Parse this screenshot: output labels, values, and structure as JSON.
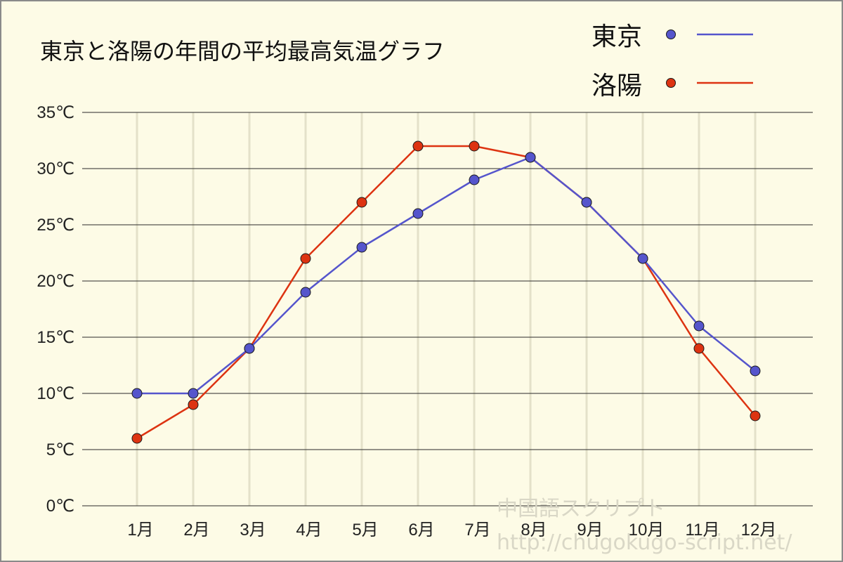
{
  "chart_data": {
    "type": "line",
    "title": "東京と洛陽の年間の平均最高気温グラフ",
    "categories": [
      "1月",
      "2月",
      "3月",
      "4月",
      "5月",
      "6月",
      "7月",
      "8月",
      "9月",
      "10月",
      "11月",
      "12月"
    ],
    "series": [
      {
        "name": "東京",
        "color": "#5555cc",
        "values": [
          10,
          10,
          14,
          19,
          23,
          26,
          29,
          31,
          27,
          22,
          16,
          12
        ]
      },
      {
        "name": "洛陽",
        "color": "#dd3311",
        "values": [
          6,
          9,
          14,
          22,
          27,
          32,
          32,
          31,
          27,
          22,
          14,
          8
        ]
      }
    ],
    "ylim": [
      0,
      35
    ],
    "yticks": [
      "0℃",
      "5℃",
      "10℃",
      "15℃",
      "20℃",
      "25℃",
      "30℃",
      "35℃"
    ],
    "ytick_values": [
      0,
      5,
      10,
      15,
      20,
      25,
      30,
      35
    ],
    "grid": true,
    "legend_position": "top-right"
  },
  "watermark": {
    "line1": "中国語スクリプト",
    "line2": "http://chugokugo-script.net/"
  }
}
